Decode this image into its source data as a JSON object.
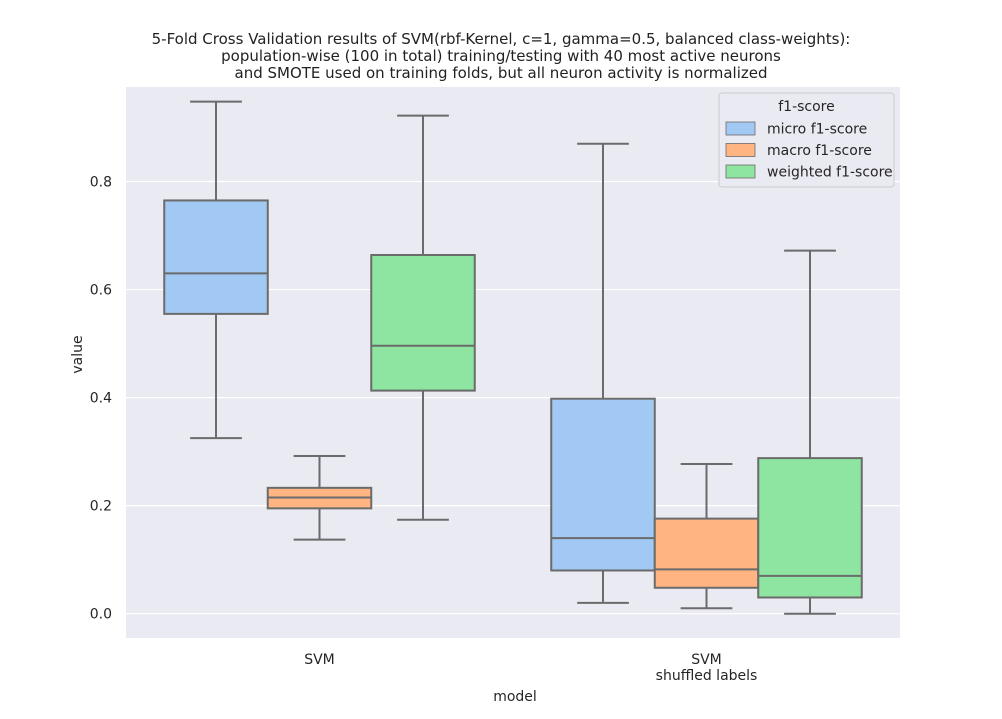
{
  "chart_data": {
    "type": "box",
    "title_lines": [
      "5-Fold Cross Validation results of SVM(rbf-Kernel, c=1, gamma=0.5, balanced class-weights):",
      "population-wise (100 in total) training/testing with 40 most active neurons",
      "and SMOTE used on training folds, but all neuron activity is normalized"
    ],
    "xlabel": "model",
    "ylabel": "value",
    "ylim": [
      -0.045,
      0.975
    ],
    "yticks": [
      "0.0",
      "0.2",
      "0.4",
      "0.6",
      "0.8"
    ],
    "categories": [
      {
        "lines": [
          "SVM"
        ]
      },
      {
        "lines": [
          "SVM",
          "shuffled labels"
        ]
      }
    ],
    "legend": {
      "title": "f1-score",
      "placement": "top-right",
      "entries": [
        "micro f1-score",
        "macro f1-score",
        "weighted f1-score"
      ]
    },
    "colors": {
      "background": "#eaeaf2",
      "grid": "#ffffff",
      "edge": "#6b6b6b",
      "series": [
        "#a1c9f4",
        "#ffb482",
        "#8de5a1"
      ]
    },
    "series": [
      {
        "name": "micro f1-score",
        "boxes": [
          {
            "whislo": 0.325,
            "q1": 0.555,
            "med": 0.63,
            "q3": 0.765,
            "whishi": 0.948
          },
          {
            "whislo": 0.02,
            "q1": 0.08,
            "med": 0.14,
            "q3": 0.398,
            "whishi": 0.87
          }
        ]
      },
      {
        "name": "macro f1-score",
        "boxes": [
          {
            "whislo": 0.137,
            "q1": 0.195,
            "med": 0.215,
            "q3": 0.233,
            "whishi": 0.292
          },
          {
            "whislo": 0.01,
            "q1": 0.048,
            "med": 0.082,
            "q3": 0.176,
            "whishi": 0.277
          }
        ]
      },
      {
        "name": "weighted f1-score",
        "boxes": [
          {
            "whislo": 0.174,
            "q1": 0.413,
            "med": 0.496,
            "q3": 0.664,
            "whishi": 0.922
          },
          {
            "whislo": 0.0,
            "q1": 0.03,
            "med": 0.07,
            "q3": 0.288,
            "whishi": 0.672
          }
        ]
      }
    ]
  }
}
